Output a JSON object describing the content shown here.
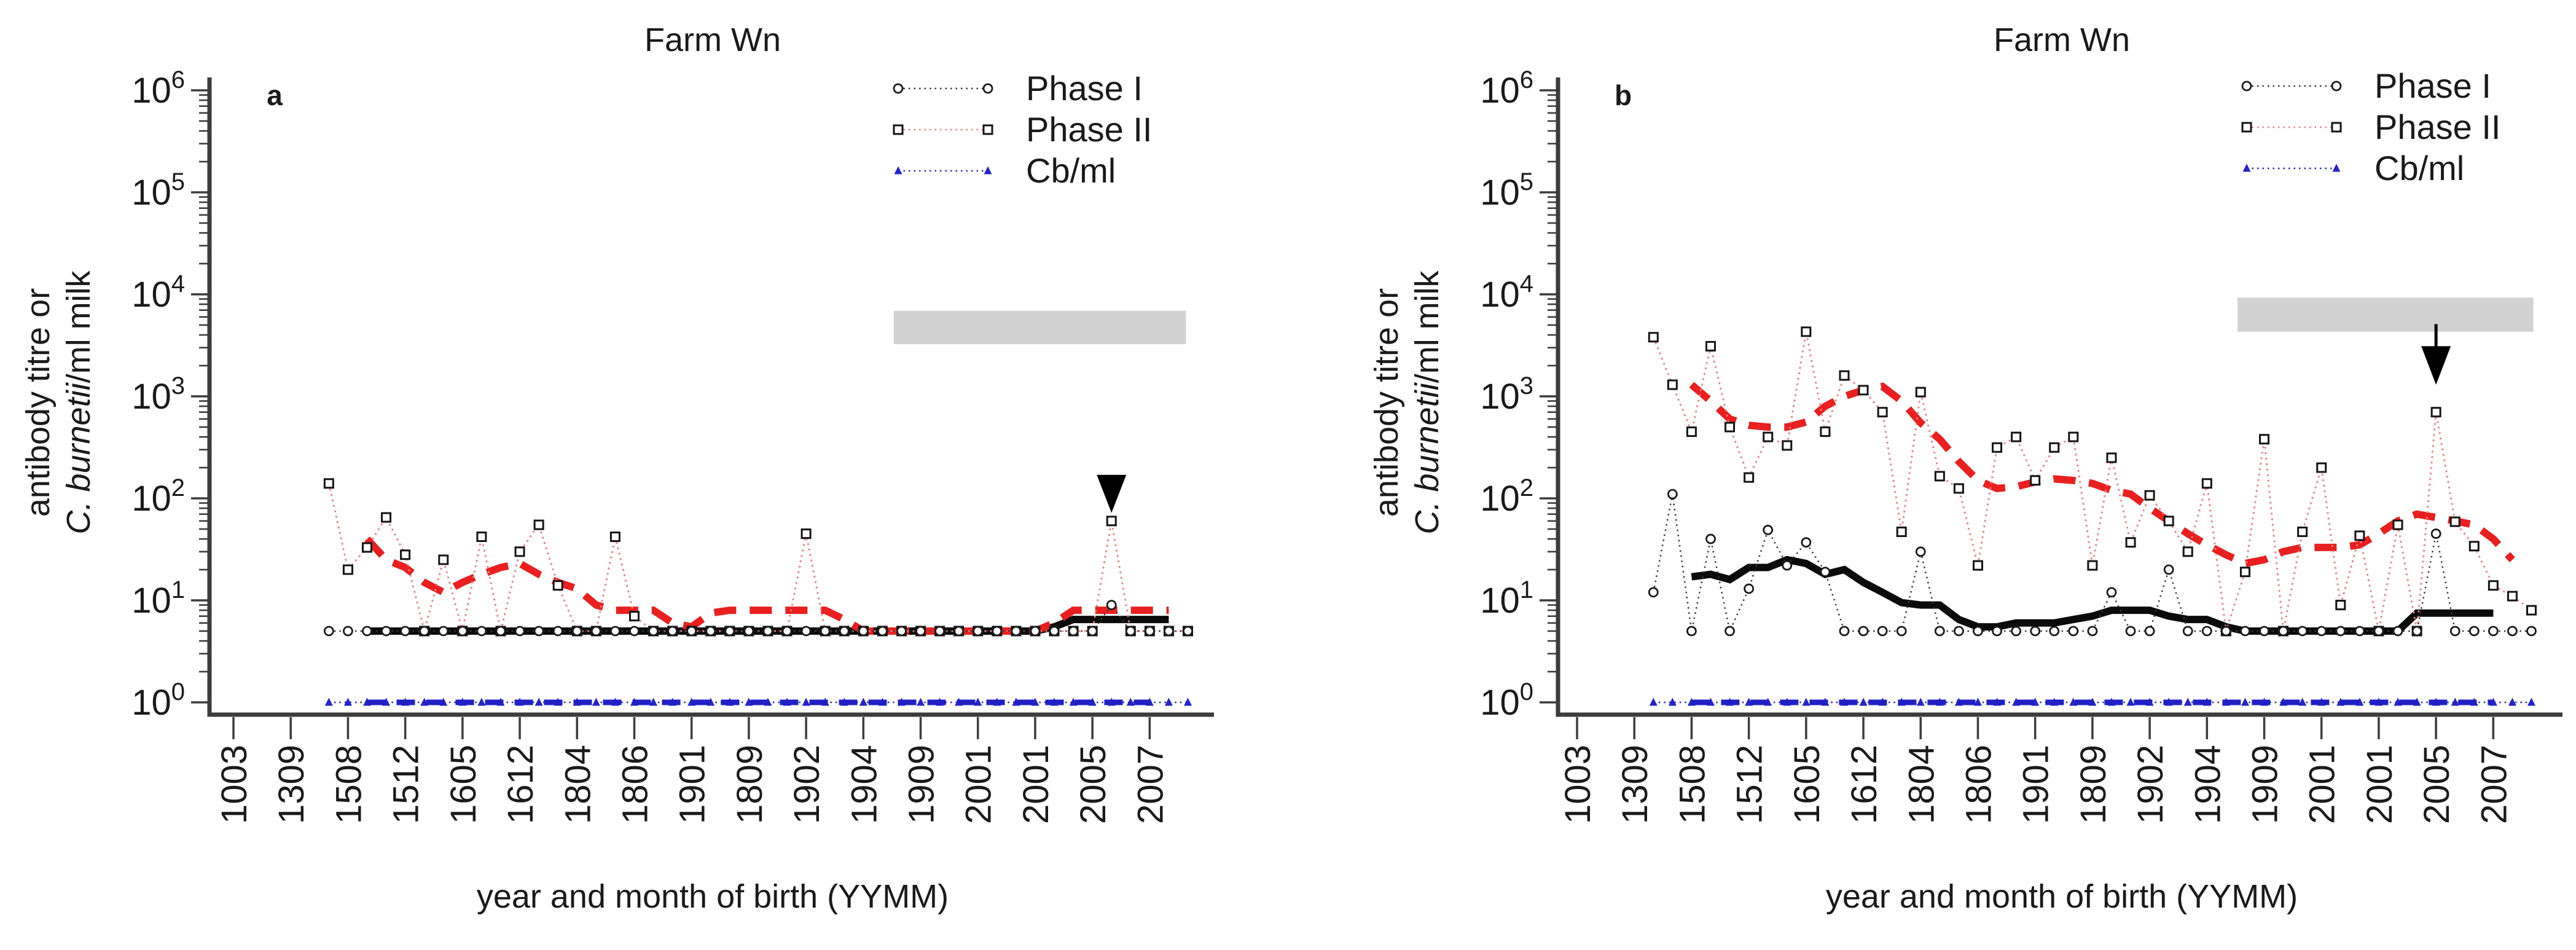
{
  "figure": {
    "xlabel": "year and month of birth (YYMM)",
    "ylabel_line1": "antibody titre or",
    "ylabel_line2_italic": "C. burnetii",
    "ylabel_line2_rest": "/ml milk"
  },
  "colors": {
    "phase1_line": "#3a3a3a",
    "phase1_marker": "#1a1a1a",
    "phase2_line": "#f08080",
    "phase2_marker": "#141414",
    "cb_line": "#2424c8",
    "phase1_trend": "#0b0b0b",
    "phase2_trend": "#e8201f",
    "cb_trend": "#2020c4",
    "gray_bar": "#d2d2d2",
    "axis": "#3c3c3c",
    "text": "#1a1a1a",
    "marker_fill": "#ffffff",
    "arrow": "#000000"
  },
  "chart_data": [
    {
      "type": "line",
      "title": "Farm Wn",
      "panel_label": "a",
      "y_scale": "log",
      "ylim": [
        1,
        1000000
      ],
      "y_tick_exponents": [
        0,
        1,
        2,
        3,
        4,
        5,
        6
      ],
      "legend": [
        "Phase I",
        "Phase II",
        "Cb/ml"
      ],
      "legend_position": "top-right",
      "x_tick_labels": [
        "1003",
        "1309",
        "1508",
        "1512",
        "1605",
        "1612",
        "1804",
        "1806",
        "1901",
        "1809",
        "1902",
        "1904",
        "1909",
        "2001",
        "2001",
        "2005",
        "2007"
      ],
      "ticks_every_n_slots": 3,
      "series": {
        "phase1": {
          "start_slot": 5,
          "values": [
            5,
            5,
            5,
            5,
            5,
            5,
            5,
            5,
            5,
            5,
            5,
            5,
            5,
            5,
            5,
            5,
            5,
            5,
            5,
            5,
            5,
            5,
            5,
            5,
            5,
            5,
            5,
            5,
            5,
            5,
            5,
            5,
            5,
            5,
            5,
            5,
            5,
            5,
            5,
            5,
            5,
            9,
            5,
            5,
            5,
            5
          ]
        },
        "phase2": {
          "start_slot": 5,
          "values": [
            140,
            20,
            33,
            65,
            28,
            5,
            25,
            5,
            42,
            5,
            30,
            55,
            14,
            5,
            5,
            42,
            7,
            5,
            5,
            5,
            5,
            5,
            5,
            5,
            5,
            45,
            5,
            5,
            5,
            5,
            5,
            5,
            5,
            5,
            5,
            5,
            5,
            5,
            5,
            5,
            5,
            60,
            5,
            5,
            5,
            5
          ]
        },
        "cb": {
          "start_slot": 5,
          "values": [
            1,
            1,
            1,
            1,
            1,
            1,
            1,
            1,
            1,
            1,
            1,
            1,
            1,
            1,
            1,
            1,
            1,
            1,
            1,
            1,
            1,
            1,
            1,
            1,
            1,
            1,
            1,
            1,
            1,
            1,
            1,
            1,
            1,
            1,
            1,
            1,
            1,
            1,
            1,
            1,
            1,
            1,
            1,
            1,
            1,
            1
          ]
        },
        "phase2_trend": {
          "start_slot": 7,
          "values": [
            40,
            25,
            21,
            15,
            12,
            15,
            18,
            21,
            23,
            18,
            15,
            13,
            9,
            8,
            8,
            8,
            6,
            5.5,
            7.5,
            8,
            8,
            8,
            8,
            8,
            8,
            6.5,
            5,
            5,
            5,
            5,
            5,
            5,
            5,
            5,
            5,
            5,
            6,
            8,
            8,
            8,
            8,
            8,
            8
          ]
        },
        "phase1_trend": {
          "start_slot": 7,
          "values": [
            5,
            5,
            5,
            5,
            5,
            5,
            5,
            5,
            5,
            5,
            5,
            5,
            5,
            5,
            5,
            5,
            5,
            5,
            5,
            5,
            5,
            5,
            5,
            5,
            5,
            5,
            5,
            5,
            5,
            5,
            5,
            5,
            5,
            5,
            5,
            5,
            5.5,
            6.5,
            6.5,
            6.5,
            6.5,
            6.5,
            6.5
          ]
        },
        "cb_trend": {
          "start_slot": 7,
          "values": [
            1,
            1,
            1,
            1,
            1,
            1,
            1,
            1,
            1,
            1,
            1,
            1,
            1,
            1,
            1,
            1,
            1,
            1,
            1,
            1,
            1,
            1,
            1,
            1,
            1,
            1,
            1,
            1,
            1,
            1,
            1,
            1,
            1,
            1,
            1,
            1,
            1,
            1,
            1,
            1,
            1,
            1
          ]
        }
      },
      "gray_bar": {
        "from_slot": 34.6,
        "to_slot": 49.9,
        "value_top": 6900,
        "value_bottom": 3250
      },
      "arrow": {
        "slot": 46,
        "value_top": 170,
        "value_tip": 72,
        "stem": false
      }
    },
    {
      "type": "line",
      "title": "Farm Wn",
      "panel_label": "b",
      "y_scale": "log",
      "ylim": [
        1,
        1000000
      ],
      "y_tick_exponents": [
        0,
        1,
        2,
        3,
        4,
        5,
        6
      ],
      "legend": [
        "Phase I",
        "Phase II",
        "Cb/ml"
      ],
      "legend_position": "top-right",
      "x_tick_labels": [
        "1003",
        "1309",
        "1508",
        "1512",
        "1605",
        "1612",
        "1804",
        "1806",
        "1901",
        "1809",
        "1902",
        "1904",
        "1909",
        "2001",
        "2001",
        "2005",
        "2007"
      ],
      "ticks_every_n_slots": 3,
      "series": {
        "phase1": {
          "start_slot": 4,
          "values": [
            12,
            110,
            5,
            40,
            5,
            13,
            49,
            22,
            37,
            19,
            5,
            5,
            5,
            5,
            30,
            5,
            5,
            5,
            5,
            5,
            5,
            5,
            5,
            5,
            12,
            5,
            5,
            20,
            5,
            5,
            5,
            5,
            5,
            5,
            5,
            5,
            5,
            5,
            5,
            5,
            5,
            45,
            5,
            5,
            5,
            5,
            5
          ]
        },
        "phase2": {
          "start_slot": 4,
          "values": [
            3800,
            1300,
            450,
            3100,
            500,
            160,
            400,
            330,
            4300,
            450,
            1600,
            1150,
            700,
            47,
            1100,
            165,
            125,
            22,
            315,
            400,
            150,
            315,
            400,
            22,
            250,
            37,
            107,
            60,
            30,
            140,
            5,
            19,
            380,
            5,
            47,
            200,
            9,
            43,
            5,
            55,
            5,
            700,
            59,
            34,
            14,
            11,
            8
          ]
        },
        "cb": {
          "start_slot": 4,
          "values": [
            1,
            1,
            1,
            1,
            1,
            1,
            1,
            1,
            1,
            1,
            1,
            1,
            1,
            1,
            1,
            1,
            1,
            1,
            1,
            1,
            1,
            1,
            1,
            1,
            1,
            1,
            1,
            1,
            1,
            1,
            1,
            1,
            1,
            1,
            1,
            1,
            1,
            1,
            1,
            1,
            1,
            1,
            1,
            1,
            1,
            1,
            1
          ]
        },
        "phase2_trend": {
          "start_slot": 6,
          "values": [
            1300,
            900,
            600,
            520,
            500,
            500,
            560,
            800,
            1000,
            1150,
            1250,
            900,
            550,
            380,
            230,
            150,
            125,
            130,
            145,
            155,
            150,
            140,
            120,
            110,
            80,
            60,
            45,
            35,
            28,
            23,
            25,
            30,
            33,
            33,
            33,
            35,
            45,
            60,
            70,
            65,
            60,
            55,
            40,
            25
          ]
        },
        "phase1_trend": {
          "start_slot": 6,
          "values": [
            17,
            18,
            16,
            21,
            21,
            25,
            23,
            18,
            20,
            15,
            12,
            9.5,
            9,
            9,
            6.5,
            5.5,
            5.5,
            6,
            6,
            6,
            6.5,
            7,
            8,
            8,
            8,
            7,
            6.5,
            6.5,
            5.5,
            5,
            5,
            5,
            5,
            5,
            5,
            5,
            5,
            5,
            7.5,
            7.5,
            7.5,
            7.5,
            7.5
          ]
        },
        "cb_trend": {
          "start_slot": 6,
          "values": [
            1,
            1,
            1,
            1,
            1,
            1,
            1,
            1,
            1,
            1,
            1,
            1,
            1,
            1,
            1,
            1,
            1,
            1,
            1,
            1,
            1,
            1,
            1,
            1,
            1,
            1,
            1,
            1,
            1,
            1,
            1,
            1,
            1,
            1,
            1,
            1,
            1,
            1,
            1,
            1,
            1,
            1,
            1
          ]
        }
      },
      "gray_bar": {
        "from_slot": 34.6,
        "to_slot": 50.1,
        "value_top": 9300,
        "value_bottom": 4300
      },
      "arrow": {
        "slot": 45,
        "value_top": 3100,
        "value_tip": 1300,
        "stem": true
      }
    }
  ]
}
